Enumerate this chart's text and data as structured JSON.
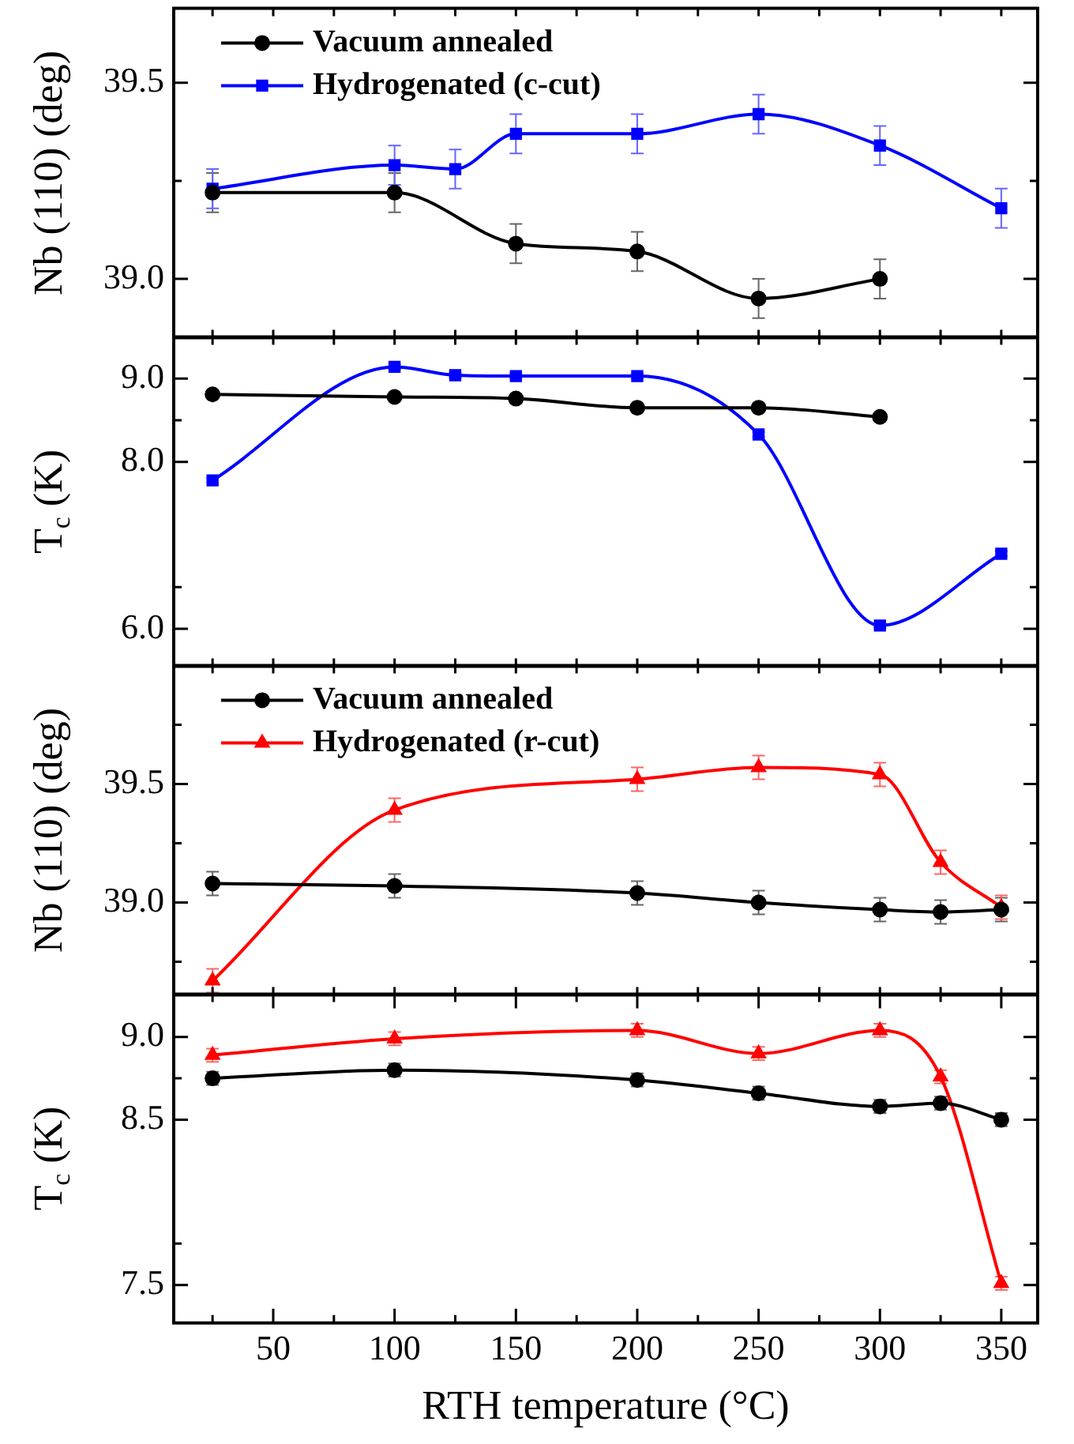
{
  "chart_data": [
    {
      "type": "line",
      "ylabel": "Nb (110) (deg)",
      "legend": "top left",
      "tick_labels": "y",
      "xlim": [
        9,
        365
      ],
      "xticks": [
        {
          "value": 25,
          "label": null
        },
        {
          "value": 50,
          "label": null
        },
        {
          "value": 75,
          "label": null
        },
        {
          "value": 100,
          "label": null
        },
        {
          "value": 125,
          "label": null
        },
        {
          "value": 150,
          "label": null
        },
        {
          "value": 175,
          "label": null
        },
        {
          "value": 200,
          "label": null
        },
        {
          "value": 225,
          "label": null
        },
        {
          "value": 250,
          "label": null
        },
        {
          "value": 275,
          "label": null
        },
        {
          "value": 300,
          "label": null
        },
        {
          "value": 325,
          "label": null
        },
        {
          "value": 350,
          "label": null
        }
      ],
      "ylim": [
        38.85,
        39.69
      ],
      "yticks": [
        {
          "value": 39.0,
          "label": "39.0"
        },
        {
          "value": 39.25,
          "label": null
        },
        {
          "value": 39.5,
          "label": "39.5"
        }
      ],
      "series": [
        {
          "name": "Vacuum annealed",
          "color": "#000000",
          "marker": "circle",
          "x": [
            25,
            100,
            150,
            200,
            250,
            300
          ],
          "values": [
            39.22,
            39.22,
            39.09,
            39.07,
            38.95,
            39.0
          ],
          "errors": [
            0.05,
            0.05,
            0.05,
            0.05,
            0.05,
            0.05
          ]
        },
        {
          "name": "Hydrogenated (c-cut)",
          "color": "#0000ff",
          "marker": "square",
          "x": [
            25,
            100,
            125,
            150,
            200,
            250,
            300,
            350
          ],
          "values": [
            39.23,
            39.29,
            39.28,
            39.37,
            39.37,
            39.42,
            39.34,
            39.18
          ],
          "errors": [
            0.05,
            0.05,
            0.05,
            0.05,
            0.05,
            0.05,
            0.05,
            0.05
          ]
        }
      ]
    },
    {
      "type": "line",
      "ylabel": "T$_{c}$ (K)",
      "tick_labels": "y",
      "xlim": [
        9,
        365
      ],
      "xticks": [
        {
          "value": 25,
          "label": null
        },
        {
          "value": 50,
          "label": null
        },
        {
          "value": 75,
          "label": null
        },
        {
          "value": 100,
          "label": null
        },
        {
          "value": 125,
          "label": null
        },
        {
          "value": 150,
          "label": null
        },
        {
          "value": 175,
          "label": null
        },
        {
          "value": 200,
          "label": null
        },
        {
          "value": 225,
          "label": null
        },
        {
          "value": 250,
          "label": null
        },
        {
          "value": 275,
          "label": null
        },
        {
          "value": 300,
          "label": null
        },
        {
          "value": 325,
          "label": null
        },
        {
          "value": 350,
          "label": null
        }
      ],
      "ylim": [
        5.55,
        9.5
      ],
      "yticks": [
        {
          "value": 6.0,
          "label": "6.0"
        },
        {
          "value": 6.5,
          "label": null
        },
        {
          "value": 8.0,
          "label": "8.0"
        },
        {
          "value": 8.5,
          "label": null
        },
        {
          "value": 9.0,
          "label": "9.0"
        }
      ],
      "series": [
        {
          "color": "#000000",
          "marker": "circle",
          "x": [
            25,
            100,
            150,
            200,
            250,
            300
          ],
          "values": [
            8.81,
            8.78,
            8.76,
            8.65,
            8.65,
            8.54
          ],
          "errors": [
            0.03,
            0.03,
            0.03,
            0.03,
            0.03,
            0.03
          ]
        },
        {
          "color": "#0000ff",
          "marker": "square",
          "x": [
            25,
            100,
            125,
            150,
            200,
            250,
            300,
            350
          ],
          "values": [
            7.78,
            9.14,
            9.04,
            9.03,
            9.03,
            8.33,
            6.04,
            6.9
          ],
          "errors": [
            0.03,
            0.03,
            0.03,
            0.03,
            0.03,
            0.03,
            0.03,
            0.03
          ]
        }
      ]
    },
    {
      "type": "line",
      "ylabel": "Nb (110) (deg)",
      "legend": "top left",
      "tick_labels": "y",
      "xlim": [
        9,
        365
      ],
      "xticks": [
        {
          "value": 25,
          "label": null
        },
        {
          "value": 50,
          "label": null
        },
        {
          "value": 75,
          "label": null
        },
        {
          "value": 100,
          "label": null
        },
        {
          "value": 125,
          "label": null
        },
        {
          "value": 150,
          "label": null
        },
        {
          "value": 175,
          "label": null
        },
        {
          "value": 200,
          "label": null
        },
        {
          "value": 225,
          "label": null
        },
        {
          "value": 250,
          "label": null
        },
        {
          "value": 275,
          "label": null
        },
        {
          "value": 300,
          "label": null
        },
        {
          "value": 325,
          "label": null
        },
        {
          "value": 350,
          "label": null
        }
      ],
      "ylim": [
        38.61,
        40.0
      ],
      "yticks": [
        {
          "value": 38.75,
          "label": null
        },
        {
          "value": 39.0,
          "label": "39.0"
        },
        {
          "value": 39.25,
          "label": null
        },
        {
          "value": 39.5,
          "label": "39.5"
        },
        {
          "value": 39.75,
          "label": null
        }
      ],
      "series": [
        {
          "name": "Vacuum annealed",
          "color": "#000000",
          "marker": "circle",
          "x": [
            25,
            100,
            200,
            250,
            300,
            325,
            350
          ],
          "values": [
            39.08,
            39.07,
            39.04,
            39.0,
            38.97,
            38.96,
            38.97
          ],
          "errors": [
            0.05,
            0.05,
            0.05,
            0.05,
            0.05,
            0.05,
            0.05
          ]
        },
        {
          "name": "Hydrogenated (r-cut)",
          "color": "#ff0000",
          "marker": "triangle",
          "x": [
            25,
            100,
            200,
            250,
            300,
            325,
            350
          ],
          "values": [
            38.67,
            39.39,
            39.52,
            39.57,
            39.54,
            39.17,
            38.98
          ],
          "errors": [
            0.05,
            0.05,
            0.05,
            0.05,
            0.05,
            0.05,
            0.05
          ]
        }
      ]
    },
    {
      "type": "line",
      "ylabel": "T$_{c}$ (K)",
      "xlabel": "RTH temperature (°C)",
      "xlim": [
        9,
        365
      ],
      "xticks": [
        {
          "value": 25,
          "label": null
        },
        {
          "value": 50,
          "label": "50"
        },
        {
          "value": 75,
          "label": null
        },
        {
          "value": 100,
          "label": "100"
        },
        {
          "value": 125,
          "label": null
        },
        {
          "value": 150,
          "label": "150"
        },
        {
          "value": 175,
          "label": null
        },
        {
          "value": 200,
          "label": "200"
        },
        {
          "value": 225,
          "label": null
        },
        {
          "value": 250,
          "label": "250"
        },
        {
          "value": 275,
          "label": null
        },
        {
          "value": 300,
          "label": "300"
        },
        {
          "value": 325,
          "label": null
        },
        {
          "value": 350,
          "label": "350"
        }
      ],
      "ylim": [
        7.27,
        9.26
      ],
      "yticks": [
        {
          "value": 7.5,
          "label": "7.5"
        },
        {
          "value": 7.75,
          "label": null
        },
        {
          "value": 8.5,
          "label": "8.5"
        },
        {
          "value": 8.75,
          "label": null
        },
        {
          "value": 9.0,
          "label": "9.0"
        }
      ],
      "series": [
        {
          "color": "#000000",
          "marker": "circle",
          "x": [
            25,
            100,
            200,
            250,
            300,
            325,
            350
          ],
          "values": [
            8.75,
            8.8,
            8.74,
            8.66,
            8.58,
            8.6,
            8.5
          ],
          "errors": [
            0.04,
            0.04,
            0.04,
            0.04,
            0.04,
            0.04,
            0.04
          ]
        },
        {
          "color": "#ff0000",
          "marker": "triangle",
          "x": [
            25,
            100,
            200,
            250,
            300,
            325,
            350
          ],
          "values": [
            8.89,
            8.99,
            9.04,
            8.9,
            9.04,
            8.76,
            7.51
          ],
          "errors": [
            0.04,
            0.04,
            0.04,
            0.04,
            0.04,
            0.04,
            0.04
          ]
        }
      ]
    }
  ]
}
